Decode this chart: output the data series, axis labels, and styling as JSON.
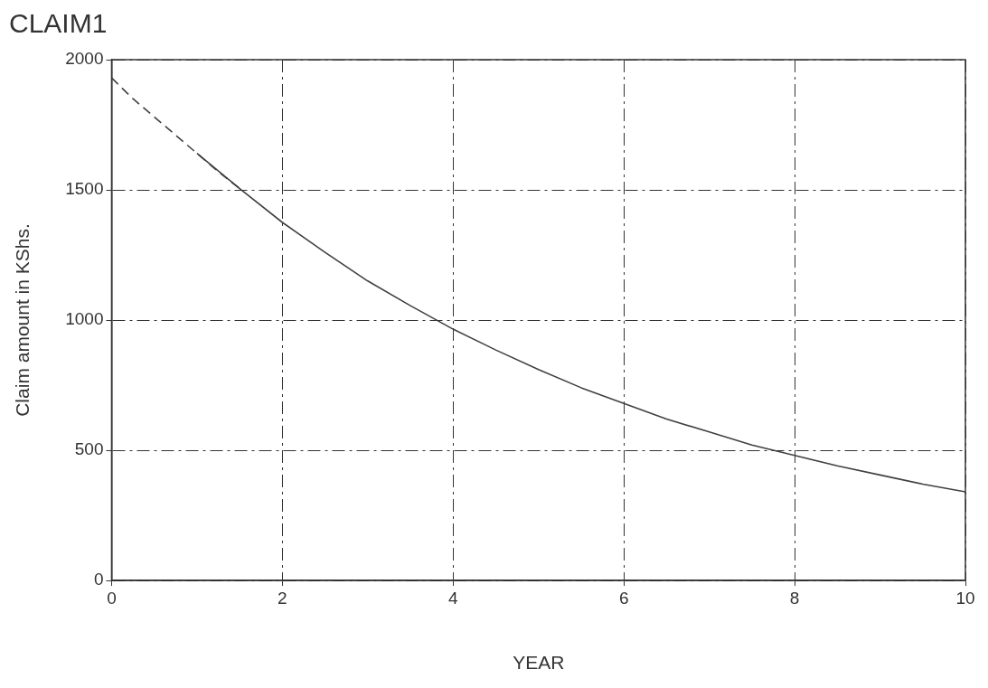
{
  "chart_data": {
    "type": "line",
    "title": "CLAIM1",
    "xlabel": "YEAR",
    "ylabel": "Claim amount in KShs.",
    "xlim": [
      0,
      10
    ],
    "xticks": [
      0,
      2,
      4,
      6,
      8,
      10
    ],
    "ylim": [
      0,
      2000
    ],
    "yticks": [
      0,
      500,
      1000,
      1500,
      2000
    ],
    "grid": true,
    "legend": false,
    "marker": "none",
    "series": [
      {
        "color": "#404040",
        "line_style": "dashed",
        "x": [
          0,
          0.25,
          0.5,
          0.75,
          1,
          1.25,
          1.5
        ],
        "values": [
          1930,
          1850,
          1780,
          1710,
          1640,
          1570,
          1505
        ]
      },
      {
        "color": "#404040",
        "line_style": "solid",
        "x": [
          1,
          1.5,
          2,
          2.5,
          3,
          3.5,
          4,
          4.5,
          5,
          5.5,
          6,
          6.5,
          7,
          7.5,
          8,
          8.5,
          9,
          9.5,
          10
        ],
        "values": [
          1640,
          1505,
          1375,
          1260,
          1150,
          1055,
          965,
          885,
          810,
          740,
          680,
          620,
          570,
          520,
          480,
          440,
          405,
          370,
          340
        ]
      }
    ]
  }
}
